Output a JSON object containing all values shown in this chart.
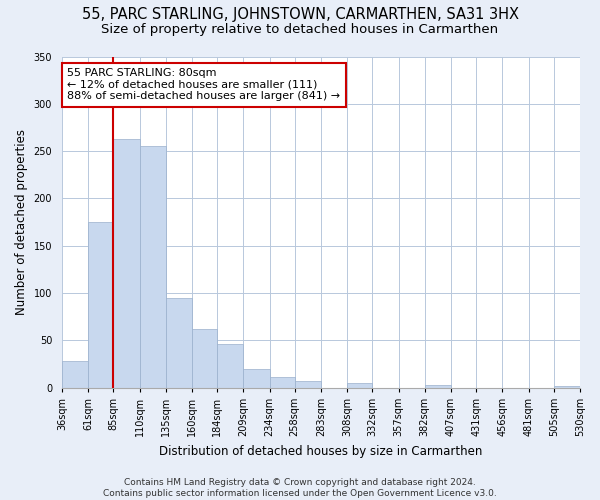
{
  "title": "55, PARC STARLING, JOHNSTOWN, CARMARTHEN, SA31 3HX",
  "subtitle": "Size of property relative to detached houses in Carmarthen",
  "xlabel": "Distribution of detached houses by size in Carmarthen",
  "ylabel": "Number of detached properties",
  "bar_color": "#c8d8ee",
  "bar_edge_color": "#9ab0cc",
  "annotation_line1": "55 PARC STARLING: 80sqm",
  "annotation_line2": "← 12% of detached houses are smaller (111)",
  "annotation_line3": "88% of semi-detached houses are larger (841) →",
  "annotation_box_color": "white",
  "annotation_box_edge_color": "#cc0000",
  "property_line_x": 85,
  "property_line_color": "#cc0000",
  "bin_edges": [
    36,
    61,
    85,
    110,
    135,
    160,
    184,
    209,
    234,
    258,
    283,
    308,
    332,
    357,
    382,
    407,
    431,
    456,
    481,
    505,
    530
  ],
  "bin_labels": [
    "36sqm",
    "61sqm",
    "85sqm",
    "110sqm",
    "135sqm",
    "160sqm",
    "184sqm",
    "209sqm",
    "234sqm",
    "258sqm",
    "283sqm",
    "308sqm",
    "332sqm",
    "357sqm",
    "382sqm",
    "407sqm",
    "431sqm",
    "456sqm",
    "481sqm",
    "505sqm",
    "530sqm"
  ],
  "bar_heights": [
    28,
    175,
    263,
    255,
    95,
    62,
    46,
    20,
    11,
    7,
    0,
    5,
    0,
    0,
    3,
    0,
    0,
    0,
    0,
    2
  ],
  "ylim": [
    0,
    350
  ],
  "yticks": [
    0,
    50,
    100,
    150,
    200,
    250,
    300,
    350
  ],
  "footer_text": "Contains HM Land Registry data © Crown copyright and database right 2024.\nContains public sector information licensed under the Open Government Licence v3.0.",
  "background_color": "#e8eef8",
  "plot_background_color": "#ffffff",
  "grid_color": "#b8c8dc",
  "title_fontsize": 10.5,
  "subtitle_fontsize": 9.5,
  "axis_label_fontsize": 8.5,
  "tick_fontsize": 7,
  "annotation_fontsize": 8,
  "footer_fontsize": 6.5
}
